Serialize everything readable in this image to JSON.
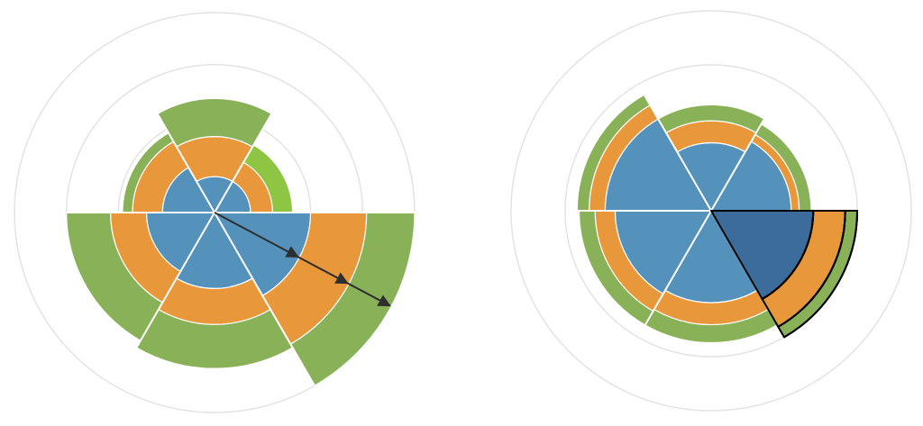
{
  "colors": {
    "background": "#ffffff",
    "inner": "#5592bb",
    "middle": "#e8973a",
    "outer": "#89b258",
    "outer_highlight": "#8ec643",
    "inner_selected": "#3b6c9b",
    "grid": "#e3e3e3",
    "separator": "#ffffff",
    "arrow": "#2f2f2f",
    "selection_outline": "#000000"
  },
  "chart_data": [
    {
      "type": "stacked-polar-area",
      "rings": [
        "inner",
        "middle",
        "outer"
      ],
      "grid": true,
      "sectors": [
        {
          "start_deg": 0,
          "end_deg": 60,
          "inner": 0.48,
          "middle": 0.76,
          "outer": 1.0
        },
        {
          "start_deg": 60,
          "end_deg": 120,
          "inner": 0.38,
          "middle": 0.56,
          "outer": 0.78
        },
        {
          "start_deg": 120,
          "end_deg": 180,
          "inner": 0.34,
          "middle": 0.52,
          "outer": 0.74
        },
        {
          "start_deg": 180,
          "end_deg": 240,
          "inner": 0.26,
          "middle": 0.41,
          "outer": 0.46
        },
        {
          "start_deg": 240,
          "end_deg": 300,
          "inner": 0.18,
          "middle": 0.38,
          "outer": 0.57
        },
        {
          "start_deg": 300,
          "end_deg": 360,
          "inner": 0.18,
          "middle": 0.29,
          "outer": 0.39
        }
      ],
      "highlighted_outer_sector": 5,
      "arrow_sector": 0,
      "arrow_stops": [
        "inner",
        "middle",
        "outer"
      ]
    },
    {
      "type": "stacked-polar-area",
      "rings": [
        "inner",
        "middle",
        "outer"
      ],
      "grid": true,
      "sectors": [
        {
          "start_deg": 0,
          "end_deg": 60,
          "inner": 0.51,
          "middle": 0.67,
          "outer": 0.73
        },
        {
          "start_deg": 60,
          "end_deg": 120,
          "inner": 0.46,
          "middle": 0.57,
          "outer": 0.66
        },
        {
          "start_deg": 120,
          "end_deg": 180,
          "inner": 0.48,
          "middle": 0.58,
          "outer": 0.66
        },
        {
          "start_deg": 180,
          "end_deg": 240,
          "inner": 0.53,
          "middle": 0.61,
          "outer": 0.67
        },
        {
          "start_deg": 240,
          "end_deg": 300,
          "inner": 0.34,
          "middle": 0.45,
          "outer": 0.53
        },
        {
          "start_deg": 300,
          "end_deg": 360,
          "inner": 0.4,
          "middle": 0.44,
          "outer": 0.5
        }
      ],
      "selected_sector": 0
    }
  ]
}
